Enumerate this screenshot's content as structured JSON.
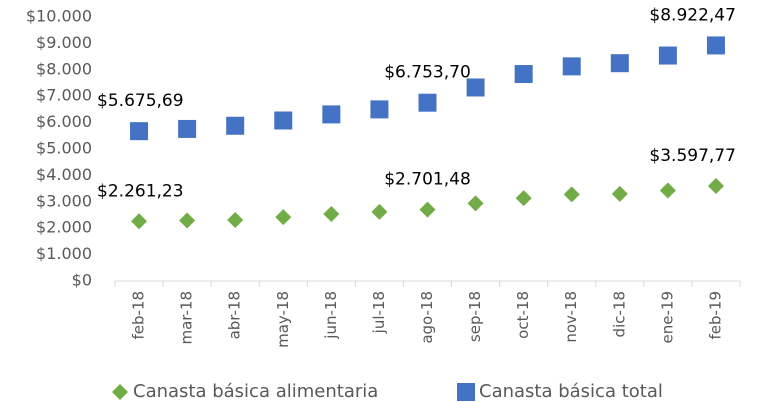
{
  "chart_data": {
    "type": "dot",
    "categories": [
      "feb-18",
      "mar-18",
      "abr-18",
      "may-18",
      "jun-18",
      "jul-18",
      "ago-18",
      "sep-18",
      "oct-18",
      "nov-18",
      "dic-18",
      "ene-19",
      "feb-19"
    ],
    "series": [
      {
        "name": "Canasta básica alimentaria",
        "color": "#70ad47",
        "marker": "diamond",
        "values": [
          2261.23,
          2290,
          2310,
          2420,
          2540,
          2620,
          2701.48,
          2940,
          3140,
          3280,
          3300,
          3430,
          3597.77
        ],
        "value_labels": [
          "$2.261,23",
          null,
          null,
          null,
          null,
          null,
          "$2.701,48",
          null,
          null,
          null,
          null,
          null,
          "$3.597,77"
        ]
      },
      {
        "name": "Canasta básica total",
        "color": "#4472c4",
        "marker": "square",
        "values": [
          5675.69,
          5760,
          5880,
          6080,
          6310,
          6500,
          6753.7,
          7330,
          7840,
          8130,
          8250,
          8540,
          8922.47
        ],
        "value_labels": [
          "$5.675,69",
          null,
          null,
          null,
          null,
          null,
          "$6.753,70",
          null,
          null,
          null,
          null,
          null,
          "$8.922,47"
        ]
      }
    ],
    "ylim": [
      0,
      10000
    ],
    "yticks": [
      {
        "value": 0,
        "label": "$0"
      },
      {
        "value": 1000,
        "label": "$1.000"
      },
      {
        "value": 2000,
        "label": "$2.000"
      },
      {
        "value": 3000,
        "label": "$3.000"
      },
      {
        "value": 4000,
        "label": "$4.000"
      },
      {
        "value": 5000,
        "label": "$5.000"
      },
      {
        "value": 6000,
        "label": "$6.000"
      },
      {
        "value": 7000,
        "label": "$7.000"
      },
      {
        "value": 8000,
        "label": "$8.000"
      },
      {
        "value": 9000,
        "label": "$9.000"
      },
      {
        "value": 10000,
        "label": "$10.000"
      }
    ],
    "grid": false,
    "legend": "bottom"
  }
}
